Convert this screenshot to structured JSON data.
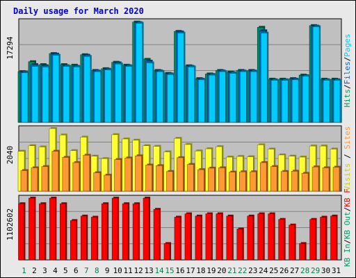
{
  "chart_data": {
    "type": "bar",
    "title": "Daily usage for March 2020",
    "categories": [
      "1",
      "2",
      "3",
      "4",
      "5",
      "6",
      "7",
      "8",
      "9",
      "10",
      "11",
      "12",
      "13",
      "14",
      "15",
      "16",
      "17",
      "18",
      "19",
      "20",
      "21",
      "22",
      "23",
      "24",
      "25",
      "26",
      "27",
      "28",
      "29",
      "30",
      "31"
    ],
    "weekend_days": [
      "1",
      "7",
      "8",
      "14",
      "15",
      "21",
      "22",
      "28",
      "29"
    ],
    "panels": [
      {
        "id": "top",
        "max_label": "17294",
        "ymax": 17294,
        "right_label_parts": [
          {
            "text": "Hits",
            "color": "#009966"
          },
          {
            "text": "/",
            "color": "#000000"
          },
          {
            "text": "Files",
            "color": "#0066cc"
          },
          {
            "text": "/",
            "color": "#000000"
          },
          {
            "text": "Pages",
            "color": "#00ccff"
          }
        ],
        "series": [
          {
            "name": "Hits",
            "color": "#008866",
            "values": [
              8700,
              10400,
              9900,
              11800,
              9900,
              9800,
              11600,
              8900,
              9200,
              10300,
              9800,
              17200,
              10800,
              8900,
              8400,
              15600,
              9700,
              7500,
              8300,
              8900,
              8600,
              8900,
              8900,
              16300,
              7400,
              7400,
              7500,
              8100,
              16600,
              7400,
              7400
            ]
          },
          {
            "name": "Files",
            "color": "#0066cc",
            "values": [
              8600,
              9900,
              9700,
              11700,
              9700,
              9600,
              11500,
              8800,
              9100,
              10200,
              9700,
              17100,
              10500,
              8800,
              8300,
              15500,
              9600,
              7400,
              8200,
              8800,
              8500,
              8800,
              8800,
              15700,
              7300,
              7300,
              7400,
              8000,
              16500,
              7300,
              7300
            ]
          },
          {
            "name": "Pages",
            "color": "#00ccff",
            "values": [
              8500,
              9600,
              9500,
              11500,
              9600,
              9500,
              11300,
              8700,
              9000,
              10000,
              9600,
              17000,
              10200,
              8700,
              8200,
              15300,
              9500,
              7300,
              8100,
              8700,
              8400,
              8700,
              8700,
              15300,
              7200,
              7200,
              7300,
              7900,
              16400,
              7200,
              7200
            ]
          }
        ]
      },
      {
        "id": "mid",
        "max_label": "2040",
        "ymax": 2040,
        "right_label_parts": [
          {
            "text": "Visits",
            "color": "#cccc00"
          },
          {
            "text": " / ",
            "color": "#000000"
          },
          {
            "text": "Sites",
            "color": "#ff9933"
          }
        ],
        "series": [
          {
            "name": "Visits",
            "color": "#ffff33",
            "values": [
              1300,
              1480,
              1440,
              2040,
              1830,
              1320,
              1760,
              1140,
              1060,
              1840,
              1700,
              1660,
              1480,
              1460,
              1280,
              1720,
              1520,
              1310,
              1380,
              1450,
              1110,
              1130,
              1120,
              1510,
              1370,
              1180,
              1140,
              1110,
              1470,
              1470,
              1370
            ]
          },
          {
            "name": "Sites",
            "color": "#ff9933",
            "values": [
              670,
              760,
              800,
              1300,
              1100,
              930,
              1170,
              600,
              520,
              1030,
              1080,
              1150,
              850,
              830,
              640,
              1090,
              870,
              700,
              750,
              760,
              620,
              630,
              630,
              930,
              800,
              640,
              650,
              580,
              790,
              760,
              780
            ]
          }
        ]
      },
      {
        "id": "bot",
        "max_label": "1102602",
        "ymax": 1102602,
        "right_label_parts": [
          {
            "text": "KB In",
            "color": "#009966"
          },
          {
            "text": "/",
            "color": "#000000"
          },
          {
            "text": "KB Out",
            "color": "#009966"
          },
          {
            "text": "/",
            "color": "#000000"
          },
          {
            "text": "KB F",
            "color": "#ff0000"
          }
        ],
        "series": [
          {
            "name": "KB F",
            "color": "#ff0000",
            "values": [
              1002000,
              1102000,
              1002000,
              1102000,
              1002000,
              702000,
              782000,
              762000,
              1002000,
              1102000,
              1002000,
              1002000,
              1102000,
              902000,
              292000,
              762000,
              822000,
              782000,
              822000,
              822000,
              782000,
              552000,
              782000,
              822000,
              822000,
              722000,
              622000,
              292000,
              722000,
              762000,
              782000
            ]
          }
        ]
      }
    ]
  }
}
